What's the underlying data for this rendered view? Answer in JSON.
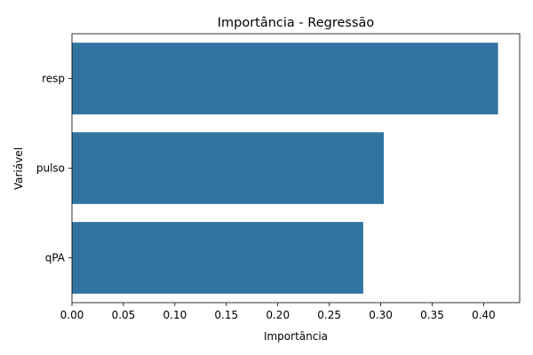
{
  "chart_data": {
    "type": "bar",
    "orientation": "horizontal",
    "title": "Importância - Regressão",
    "xlabel": "Importância",
    "ylabel": "Variável",
    "categories": [
      "resp",
      "pulso",
      "qPA"
    ],
    "values": [
      0.414,
      0.303,
      0.283
    ],
    "xlim": [
      0,
      0.435
    ],
    "xticks": [
      0.0,
      0.05,
      0.1,
      0.15,
      0.2,
      0.25,
      0.3,
      0.35,
      0.4
    ],
    "xtick_labels": [
      "0.00",
      "0.05",
      "0.10",
      "0.15",
      "0.20",
      "0.25",
      "0.30",
      "0.35",
      "0.40"
    ],
    "grid": false,
    "legend": "none",
    "bar_color": "#3274a1"
  }
}
